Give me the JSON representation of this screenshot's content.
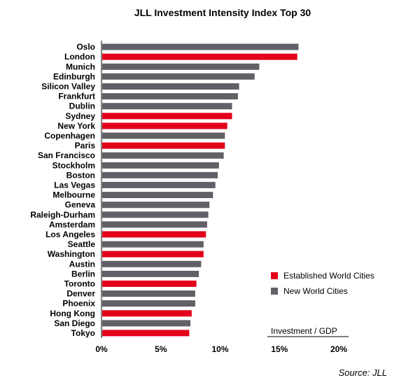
{
  "chart_data": {
    "type": "bar",
    "orientation": "horizontal",
    "title": "JLL Investment Intensity Index Top 30",
    "xlabel": "Investment / GDP",
    "xlim": [
      0,
      20
    ],
    "xticks": [
      "0%",
      "5%",
      "10%",
      "15%",
      "20%"
    ],
    "categories": [
      "Oslo",
      "London",
      "Munich",
      "Edinburgh",
      "Silicon Valley",
      "Frankfurt",
      "Dublin",
      "Sydney",
      "New York",
      "Copenhagen",
      "Paris",
      "San Francisco",
      "Stockholm",
      "Boston",
      "Las Vegas",
      "Melbourne",
      "Geneva",
      "Raleigh-Durham",
      "Amsterdam",
      "Los Angeles",
      "Seattle",
      "Washington",
      "Austin",
      "Berlin",
      "Toronto",
      "Denver",
      "Phoenix",
      "Hong Kong",
      "San Diego",
      "Tokyo"
    ],
    "values": [
      16.6,
      16.5,
      13.3,
      12.9,
      11.6,
      11.5,
      11.0,
      11.0,
      10.6,
      10.4,
      10.4,
      10.3,
      9.9,
      9.8,
      9.6,
      9.4,
      9.1,
      9.0,
      8.9,
      8.8,
      8.6,
      8.6,
      8.4,
      8.2,
      8.0,
      7.9,
      7.9,
      7.6,
      7.5,
      7.4
    ],
    "groups": [
      "New World Cities",
      "Established World Cities",
      "New World Cities",
      "New World Cities",
      "New World Cities",
      "New World Cities",
      "New World Cities",
      "Established World Cities",
      "Established World Cities",
      "New World Cities",
      "Established World Cities",
      "New World Cities",
      "New World Cities",
      "New World Cities",
      "New World Cities",
      "New World Cities",
      "New World Cities",
      "New World Cities",
      "New World Cities",
      "Established World Cities",
      "New World Cities",
      "Established World Cities",
      "New World Cities",
      "New World Cities",
      "Established World Cities",
      "New World Cities",
      "New World Cities",
      "Established World Cities",
      "New World Cities",
      "Established World Cities"
    ],
    "legend": [
      {
        "name": "Established World Cities",
        "color": "#e3001b"
      },
      {
        "name": "New World Cities",
        "color": "#626066"
      }
    ],
    "legend_position": "lower-right",
    "grid": false,
    "source": "Source: JLL"
  }
}
